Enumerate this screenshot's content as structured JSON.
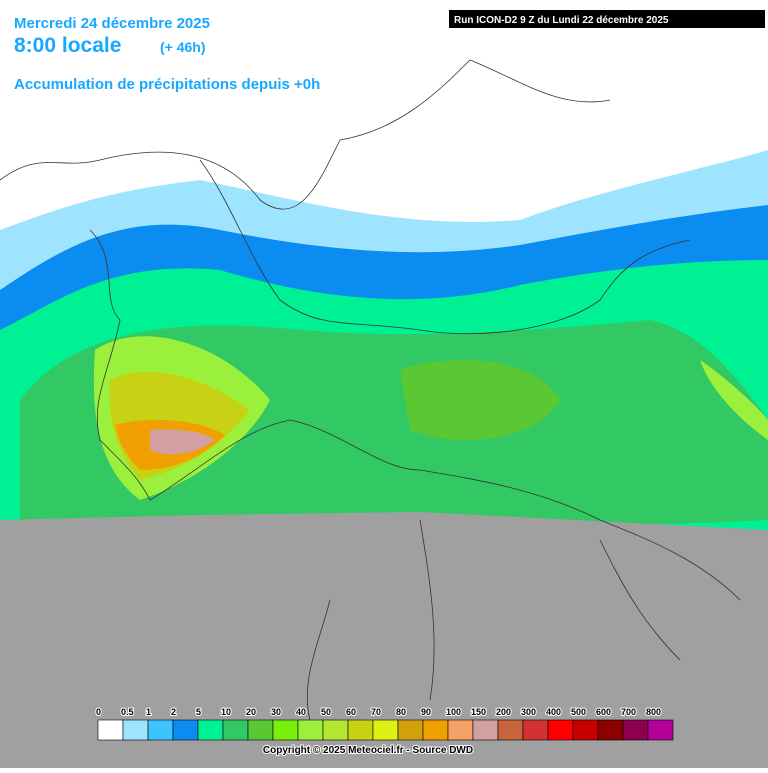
{
  "header": {
    "date": "Mercredi 24 décembre 2025",
    "time": "8:00 locale",
    "offset": "(+ 46h)",
    "subtitle": "Accumulation de précipitations depuis +0h"
  },
  "run": "Run ICON-D2 9 Z du Lundi 22 décembre 2025",
  "legend": {
    "items": [
      {
        "label": "0",
        "color": "#ffffff"
      },
      {
        "label": "0.5",
        "color": "#9fe4ff"
      },
      {
        "label": "1",
        "color": "#3cc4ff"
      },
      {
        "label": "2",
        "color": "#0a8cf0"
      },
      {
        "label": "5",
        "color": "#00f094"
      },
      {
        "label": "10",
        "color": "#32c864"
      },
      {
        "label": "20",
        "color": "#5ac832"
      },
      {
        "label": "30",
        "color": "#78f00a"
      },
      {
        "label": "40",
        "color": "#9bf03c"
      },
      {
        "label": "50",
        "color": "#b4e632"
      },
      {
        "label": "60",
        "color": "#c8d214"
      },
      {
        "label": "70",
        "color": "#dcf014"
      },
      {
        "label": "80",
        "color": "#d2a00a"
      },
      {
        "label": "90",
        "color": "#f0a000"
      },
      {
        "label": "100",
        "color": "#f5a064"
      },
      {
        "label": "150",
        "color": "#d2a0a0"
      },
      {
        "label": "200",
        "color": "#c8643c"
      },
      {
        "label": "300",
        "color": "#d23232"
      },
      {
        "label": "400",
        "color": "#ff0000"
      },
      {
        "label": "500",
        "color": "#c80000"
      },
      {
        "label": "600",
        "color": "#8c0000"
      },
      {
        "label": "700",
        "color": "#8c0050"
      },
      {
        "label": "800",
        "color": "#b40096"
      }
    ]
  },
  "copyright": "Copyright © 2025 Meteociel.fr - Source DWD"
}
